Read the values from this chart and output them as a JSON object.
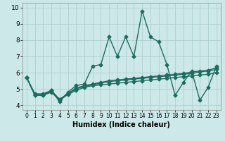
{
  "xlabel": "Humidex (Indice chaleur)",
  "xlim": [
    -0.5,
    23.5
  ],
  "ylim": [
    3.7,
    10.3
  ],
  "yticks": [
    4,
    5,
    6,
    7,
    8,
    9,
    10
  ],
  "xticks": [
    0,
    1,
    2,
    3,
    4,
    5,
    6,
    7,
    8,
    9,
    10,
    11,
    12,
    13,
    14,
    15,
    16,
    17,
    18,
    19,
    20,
    21,
    22,
    23
  ],
  "bg_color": "#cce8e8",
  "grid_color": "#aacccc",
  "line_color": "#1e6b60",
  "line_width": 1.0,
  "marker": "D",
  "marker_size": 2.5,
  "series": [
    [
      5.7,
      4.6,
      4.6,
      4.9,
      4.2,
      4.8,
      5.2,
      5.3,
      6.4,
      6.5,
      8.2,
      7.0,
      8.2,
      7.0,
      9.8,
      8.2,
      7.9,
      6.5,
      4.6,
      5.4,
      6.1,
      4.3,
      5.1,
      6.4
    ],
    [
      5.7,
      4.6,
      4.6,
      4.8,
      4.3,
      4.65,
      4.9,
      5.1,
      5.2,
      5.25,
      5.3,
      5.35,
      5.4,
      5.45,
      5.5,
      5.55,
      5.6,
      5.65,
      5.7,
      5.75,
      5.8,
      5.85,
      5.9,
      6.0
    ],
    [
      5.7,
      4.65,
      4.65,
      4.85,
      4.35,
      4.7,
      5.0,
      5.15,
      5.25,
      5.35,
      5.45,
      5.5,
      5.55,
      5.6,
      5.65,
      5.7,
      5.75,
      5.8,
      5.85,
      5.9,
      5.95,
      6.05,
      6.1,
      6.2
    ],
    [
      5.7,
      4.7,
      4.7,
      4.9,
      4.35,
      4.72,
      5.05,
      5.2,
      5.3,
      5.4,
      5.5,
      5.55,
      5.6,
      5.65,
      5.7,
      5.75,
      5.8,
      5.85,
      5.9,
      5.95,
      6.05,
      6.1,
      6.15,
      6.3
    ]
  ]
}
